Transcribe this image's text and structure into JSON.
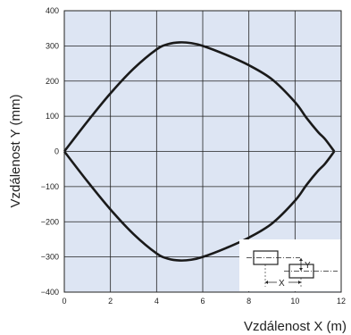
{
  "chart_data": {
    "type": "line",
    "xlabel": "Vzdálenost X (m)",
    "ylabel": "Vzdálenost Y (mm)",
    "xlim": [
      0,
      12
    ],
    "ylim": [
      -400,
      400
    ],
    "xticks": [
      0,
      2,
      4,
      6,
      8,
      10,
      12
    ],
    "yticks": [
      400,
      300,
      200,
      100,
      0,
      -100,
      -200,
      -300,
      -400
    ],
    "ytick_labels": [
      "400",
      "300",
      "200",
      "100",
      "0",
      "−100",
      "−200",
      "−300",
      "−400"
    ],
    "grid": true,
    "plot_background": "#dde5f3",
    "grid_color": "#222222",
    "series": [
      {
        "values_x": [
          0,
          1,
          2,
          3,
          4,
          4.5,
          5,
          5.5,
          6,
          7,
          8,
          9,
          10,
          10.5,
          11,
          11.3,
          11.7
        ],
        "values_y": [
          0,
          85,
          165,
          235,
          290,
          305,
          310,
          308,
          300,
          275,
          245,
          205,
          140,
          95,
          55,
          35,
          0
        ],
        "color": "#1a1a1a"
      },
      {
        "values_x": [
          0,
          1,
          2,
          3,
          4,
          4.5,
          5,
          5.5,
          6,
          7,
          8,
          9,
          10,
          10.5,
          11,
          11.3,
          11.7
        ],
        "values_y": [
          0,
          -85,
          -165,
          -235,
          -290,
          -305,
          -310,
          -308,
          -300,
          -275,
          -245,
          -205,
          -140,
          -95,
          -55,
          -35,
          0
        ],
        "color": "#1a1a1a"
      }
    ],
    "inset": {
      "labels": [
        "X",
        "Y"
      ],
      "description_position": "bottom-right"
    }
  }
}
